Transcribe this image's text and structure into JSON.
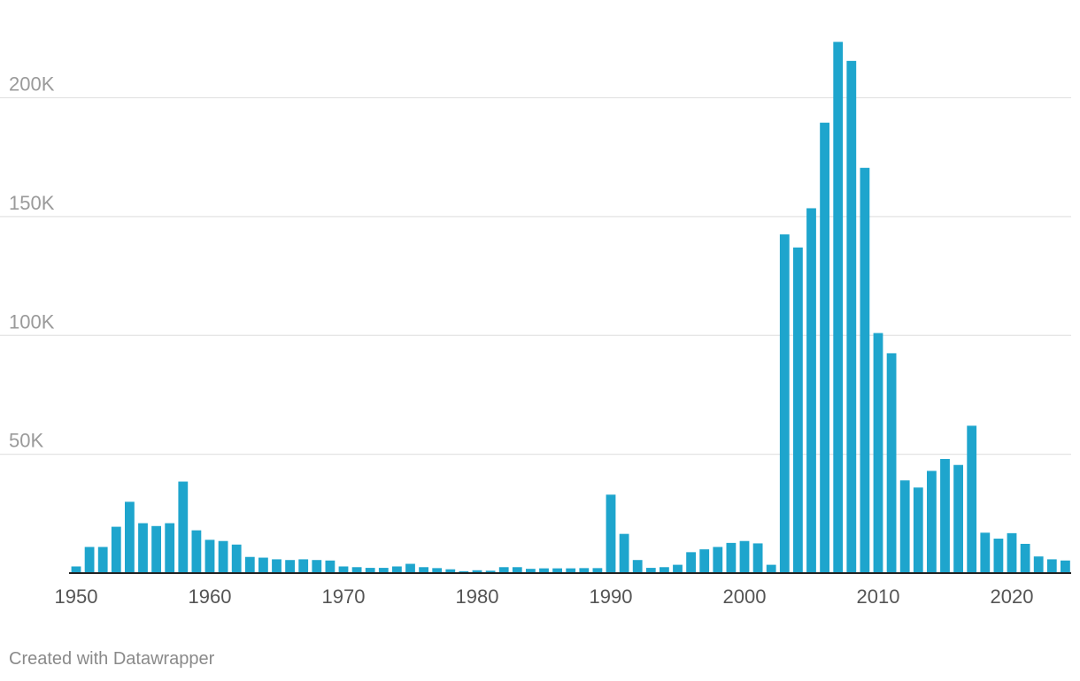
{
  "chart_data": {
    "type": "bar",
    "title": "",
    "xlabel": "",
    "ylabel": "",
    "ylim": [
      0,
      225000
    ],
    "y_ticks": [
      {
        "value": 50000,
        "label": "50K"
      },
      {
        "value": 100000,
        "label": "100K"
      },
      {
        "value": 150000,
        "label": "150K"
      },
      {
        "value": 200000,
        "label": "200K"
      }
    ],
    "x_ticks": [
      "1950",
      "1960",
      "1970",
      "1980",
      "1990",
      "2000",
      "2010",
      "2020"
    ],
    "bar_color": "#1ea5cd",
    "grid": true,
    "categories": [
      1950,
      1951,
      1952,
      1953,
      1954,
      1955,
      1956,
      1957,
      1958,
      1959,
      1960,
      1961,
      1962,
      1963,
      1964,
      1965,
      1966,
      1967,
      1968,
      1969,
      1970,
      1971,
      1972,
      1973,
      1974,
      1975,
      1976,
      1977,
      1978,
      1979,
      1980,
      1981,
      1982,
      1983,
      1984,
      1985,
      1986,
      1987,
      1988,
      1989,
      1990,
      1991,
      1992,
      1993,
      1994,
      1995,
      1996,
      1997,
      1998,
      1999,
      2000,
      2001,
      2002,
      2003,
      2004,
      2005,
      2006,
      2007,
      2008,
      2009,
      2010,
      2011,
      2012,
      2013,
      2014,
      2015,
      2016,
      2017,
      2018,
      2019,
      2020,
      2021,
      2022,
      2023,
      2024
    ],
    "values": [
      2800,
      11000,
      11000,
      19500,
      30000,
      21000,
      19800,
      21000,
      38500,
      18000,
      14000,
      13500,
      12000,
      6800,
      6500,
      5800,
      5500,
      5800,
      5500,
      5300,
      2800,
      2500,
      2200,
      2200,
      2800,
      3900,
      2500,
      2100,
      1600,
      800,
      1200,
      1000,
      2500,
      2500,
      1800,
      2000,
      2000,
      2000,
      2100,
      2100,
      33000,
      16500,
      5500,
      2200,
      2500,
      3500,
      8800,
      10000,
      11000,
      12700,
      13500,
      12500,
      3500,
      142500,
      137000,
      153500,
      189500,
      223500,
      215500,
      170500,
      101000,
      92500,
      39000,
      36000,
      43000,
      48000,
      45500,
      62000,
      17000,
      14500,
      16800,
      12300,
      7000,
      5800,
      5300
    ]
  },
  "footer": {
    "credit": "Created with Datawrapper"
  }
}
